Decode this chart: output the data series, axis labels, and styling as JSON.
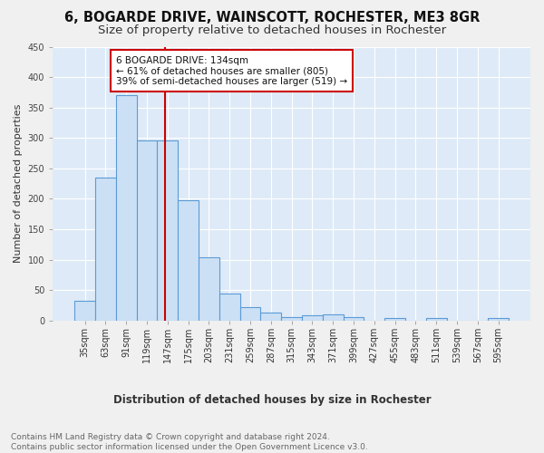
{
  "title": "6, BOGARDE DRIVE, WAINSCOTT, ROCHESTER, ME3 8GR",
  "subtitle": "Size of property relative to detached houses in Rochester",
  "xlabel": "Distribution of detached houses by size in Rochester",
  "ylabel": "Number of detached properties",
  "categories": [
    "35sqm",
    "63sqm",
    "91sqm",
    "119sqm",
    "147sqm",
    "175sqm",
    "203sqm",
    "231sqm",
    "259sqm",
    "287sqm",
    "315sqm",
    "343sqm",
    "371sqm",
    "399sqm",
    "427sqm",
    "455sqm",
    "483sqm",
    "511sqm",
    "539sqm",
    "567sqm",
    "595sqm"
  ],
  "values": [
    33,
    235,
    370,
    296,
    296,
    197,
    104,
    44,
    22,
    13,
    5,
    9,
    10,
    5,
    0,
    4,
    0,
    4,
    0,
    0,
    4
  ],
  "bar_color": "#cce0f5",
  "bar_edge_color": "#5b9bd5",
  "vline_x": 3.86,
  "vline_color": "#cc0000",
  "annotation_text": "6 BOGARDE DRIVE: 134sqm\n← 61% of detached houses are smaller (805)\n39% of semi-detached houses are larger (519) →",
  "annotation_box_color": "#ffffff",
  "annotation_box_edge_color": "#cc0000",
  "ylim": [
    0,
    450
  ],
  "yticks": [
    0,
    50,
    100,
    150,
    200,
    250,
    300,
    350,
    400,
    450
  ],
  "footer_text": "Contains HM Land Registry data © Crown copyright and database right 2024.\nContains public sector information licensed under the Open Government Licence v3.0.",
  "fig_bg_color": "#f0f0f0",
  "plot_bg_color": "#deeaf7",
  "grid_color": "#ffffff",
  "title_fontsize": 10.5,
  "subtitle_fontsize": 9.5,
  "xlabel_fontsize": 8.5,
  "ylabel_fontsize": 8,
  "tick_fontsize": 7,
  "annotation_fontsize": 7.5,
  "footer_fontsize": 6.5
}
